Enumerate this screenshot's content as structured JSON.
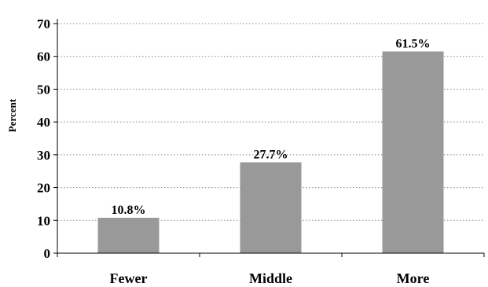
{
  "chart_data": {
    "type": "bar",
    "categories": [
      "Fewer",
      "Middle",
      "More"
    ],
    "values": [
      10.8,
      27.7,
      61.5
    ],
    "data_labels": [
      "10.8%",
      "27.7%",
      "61.5%"
    ],
    "title": "",
    "xlabel": "",
    "ylabel": "Percent",
    "ylim": [
      0,
      70
    ],
    "yticks": [
      0,
      10,
      20,
      30,
      40,
      50,
      60,
      70
    ],
    "grid": true,
    "bar_color": "#999999"
  }
}
